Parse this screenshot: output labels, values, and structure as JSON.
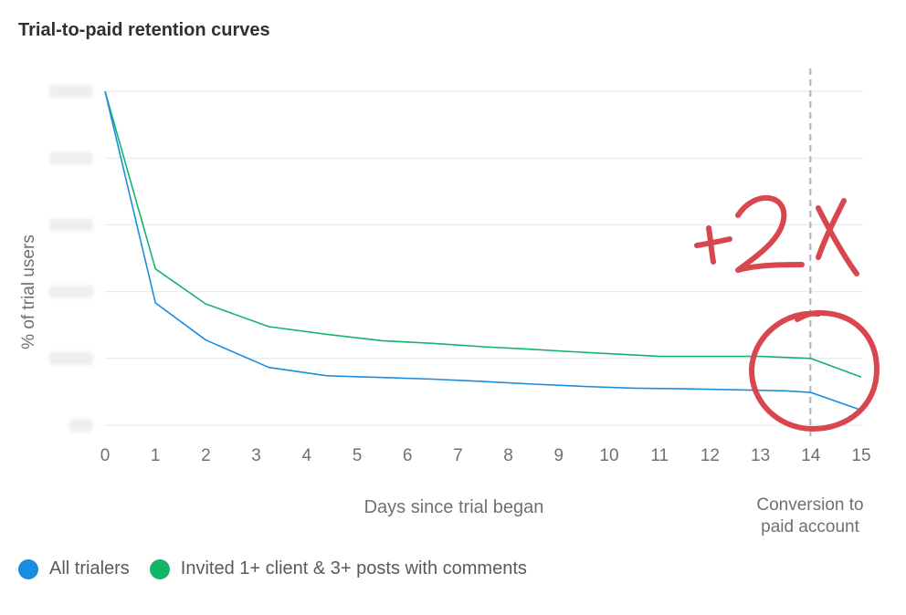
{
  "title": "Trial-to-paid retention curves",
  "colors": {
    "all_trialers": "#1a8ce0",
    "engaged": "#13b569",
    "grid": "#e5e7ea",
    "annotation": "#d9474e",
    "marker_line": "#b5b9bd"
  },
  "chart_data": {
    "type": "line",
    "title": "Trial-to-paid retention curves",
    "xlabel": "Days since trial began",
    "ylabel": "% of trial users",
    "x": [
      0,
      1,
      2,
      3,
      4,
      5,
      6,
      7,
      8,
      9,
      10,
      11,
      12,
      13,
      14,
      15
    ],
    "x_ticks": [
      "0",
      "1",
      "2",
      "3",
      "4",
      "5",
      "6",
      "7",
      "8",
      "9",
      "10",
      "11",
      "12",
      "13",
      "14",
      "15"
    ],
    "y_ticks_count": 6,
    "ylim": [
      0,
      100
    ],
    "grid": true,
    "series": [
      {
        "name": "All trialers",
        "color": "#1a8ce0",
        "points": [
          [
            0,
            100
          ],
          [
            1,
            36.6
          ],
          [
            2,
            25.5
          ],
          [
            3.25,
            17.3
          ],
          [
            4.4,
            14.8
          ],
          [
            5.5,
            14.3
          ],
          [
            6.5,
            13.8
          ],
          [
            7.5,
            13.1
          ],
          [
            8.5,
            12.3
          ],
          [
            9.5,
            11.6
          ],
          [
            10.5,
            11.1
          ],
          [
            11.5,
            10.9
          ],
          [
            12.5,
            10.6
          ],
          [
            13.5,
            10.3
          ],
          [
            14,
            9.8
          ],
          [
            15,
            4.5
          ]
        ]
      },
      {
        "name": "Invited 1+ client & 3+ posts with comments",
        "color": "#13b569",
        "points": [
          [
            0,
            100
          ],
          [
            1,
            46.8
          ],
          [
            2,
            36.3
          ],
          [
            3.25,
            29.5
          ],
          [
            4.4,
            27.2
          ],
          [
            5.5,
            25.3
          ],
          [
            6.5,
            24.5
          ],
          [
            7.5,
            23.5
          ],
          [
            8.5,
            22.7
          ],
          [
            9.5,
            21.8
          ],
          [
            10.5,
            21.0
          ],
          [
            11,
            20.6
          ],
          [
            12,
            20.6
          ],
          [
            13,
            20.6
          ],
          [
            14,
            20.0
          ],
          [
            15,
            14.4
          ]
        ]
      }
    ],
    "marker": {
      "x": 14,
      "label": "Conversion to paid account"
    },
    "annotation": {
      "text": "+2x",
      "x": 14
    }
  },
  "legend": [
    {
      "label": "All trialers",
      "color": "#1a8ce0"
    },
    {
      "label": "Invited 1+ client & 3+ posts with comments",
      "color": "#13b569"
    }
  ]
}
